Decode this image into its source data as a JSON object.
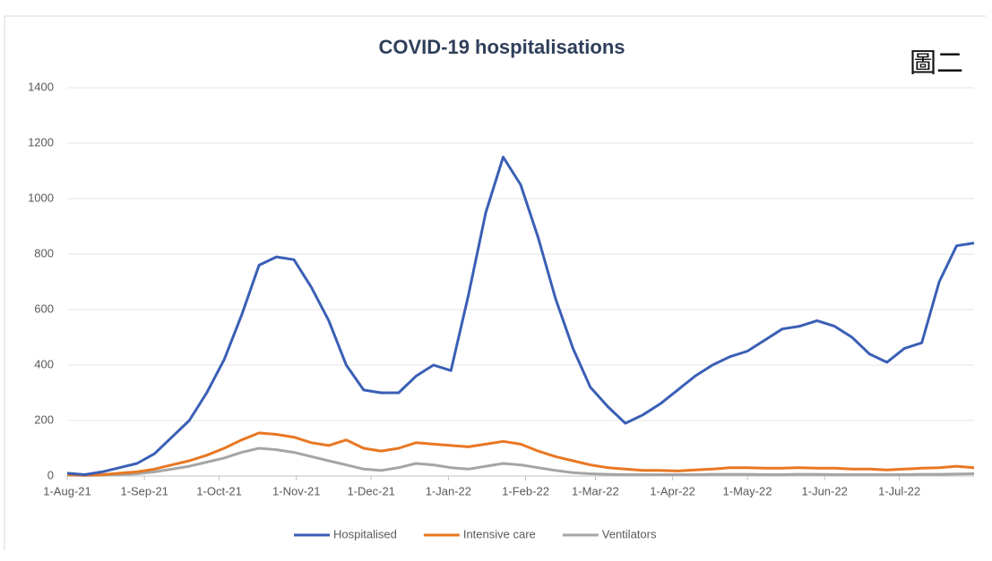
{
  "chart_data": {
    "type": "line",
    "title": "COVID-19 hospitalisations",
    "annotation": "圖二",
    "x": [
      "2021-08-01",
      "2021-08-08",
      "2021-08-15",
      "2021-08-22",
      "2021-08-29",
      "2021-09-05",
      "2021-09-12",
      "2021-09-19",
      "2021-09-26",
      "2021-10-03",
      "2021-10-10",
      "2021-10-17",
      "2021-10-24",
      "2021-10-31",
      "2021-11-07",
      "2021-11-14",
      "2021-11-21",
      "2021-11-28",
      "2021-12-05",
      "2021-12-12",
      "2021-12-19",
      "2021-12-26",
      "2022-01-02",
      "2022-01-09",
      "2022-01-16",
      "2022-01-23",
      "2022-01-30",
      "2022-02-06",
      "2022-02-13",
      "2022-02-20",
      "2022-02-27",
      "2022-03-06",
      "2022-03-13",
      "2022-03-20",
      "2022-03-27",
      "2022-04-03",
      "2022-04-10",
      "2022-04-17",
      "2022-04-24",
      "2022-05-01",
      "2022-05-08",
      "2022-05-15",
      "2022-05-22",
      "2022-05-29",
      "2022-06-05",
      "2022-06-12",
      "2022-06-19",
      "2022-06-26",
      "2022-07-03",
      "2022-07-10",
      "2022-07-17",
      "2022-07-24",
      "2022-07-31"
    ],
    "series": [
      {
        "name": "Hospitalised",
        "color": "#3a5fb5",
        "values": [
          10,
          5,
          15,
          30,
          45,
          80,
          140,
          200,
          300,
          420,
          580,
          760,
          790,
          780,
          680,
          560,
          400,
          310,
          300,
          300,
          360,
          400,
          380,
          650,
          950,
          1150,
          1050,
          860,
          640,
          460,
          320,
          250,
          190,
          220,
          260,
          310,
          360,
          400,
          430,
          450,
          490,
          530,
          540,
          560,
          540,
          500,
          440,
          410,
          460,
          480,
          700,
          830,
          840
        ]
      },
      {
        "name": "Intensive care",
        "color": "#e87722",
        "values": [
          5,
          3,
          5,
          10,
          15,
          25,
          40,
          55,
          75,
          100,
          130,
          155,
          150,
          140,
          120,
          110,
          130,
          100,
          90,
          100,
          120,
          115,
          110,
          105,
          115,
          125,
          115,
          90,
          70,
          55,
          40,
          30,
          25,
          20,
          20,
          18,
          22,
          25,
          30,
          30,
          28,
          28,
          30,
          28,
          28,
          25,
          25,
          22,
          25,
          28,
          30,
          35,
          30
        ]
      },
      {
        "name": "Ventilators",
        "color": "#a5a5a5",
        "values": [
          3,
          2,
          3,
          5,
          8,
          15,
          25,
          35,
          50,
          65,
          85,
          100,
          95,
          85,
          70,
          55,
          40,
          25,
          20,
          30,
          45,
          40,
          30,
          25,
          35,
          45,
          40,
          30,
          20,
          12,
          8,
          6,
          5,
          5,
          5,
          5,
          5,
          6,
          6,
          6,
          5,
          5,
          6,
          6,
          5,
          5,
          5,
          5,
          5,
          6,
          6,
          7,
          8
        ]
      }
    ],
    "xlim": [
      "2021-08-01",
      "2022-07-31"
    ],
    "xticks": [
      {
        "value": "2021-08-01",
        "label": "1-Aug-21"
      },
      {
        "value": "2021-09-01",
        "label": "1-Sep-21"
      },
      {
        "value": "2021-10-01",
        "label": "1-Oct-21"
      },
      {
        "value": "2021-11-01",
        "label": "1-Nov-21"
      },
      {
        "value": "2021-12-01",
        "label": "1-Dec-21"
      },
      {
        "value": "2022-01-01",
        "label": "1-Jan-22"
      },
      {
        "value": "2022-02-01",
        "label": "1-Feb-22"
      },
      {
        "value": "2022-03-01",
        "label": "1-Mar-22"
      },
      {
        "value": "2022-04-01",
        "label": "1-Apr-22"
      },
      {
        "value": "2022-05-01",
        "label": "1-May-22"
      },
      {
        "value": "2022-06-01",
        "label": "1-Jun-22"
      },
      {
        "value": "2022-07-01",
        "label": "1-Jul-22"
      }
    ],
    "ylim": [
      0,
      1400
    ],
    "yticks": [
      0,
      200,
      400,
      600,
      800,
      1000,
      1200,
      1400
    ],
    "grid": true,
    "legend": "bottom"
  }
}
